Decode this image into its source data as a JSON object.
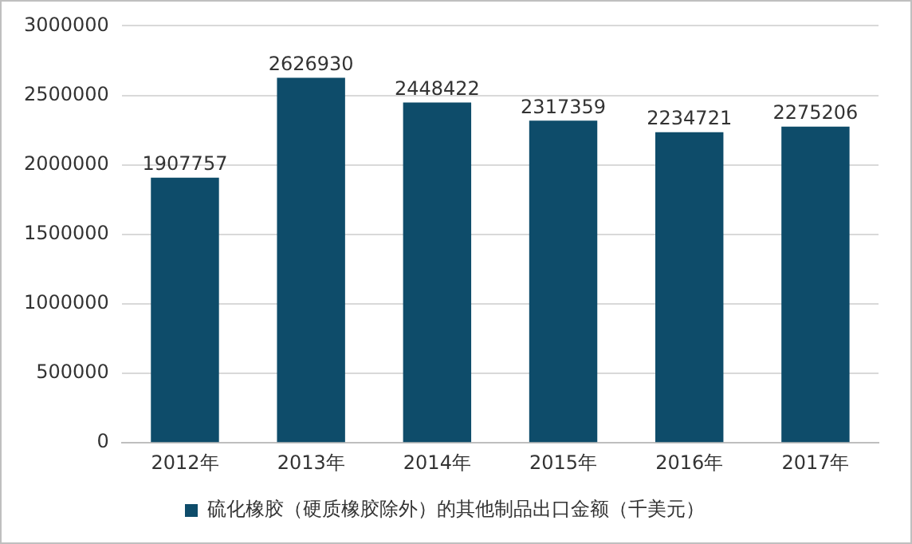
{
  "chart_data": {
    "type": "bar",
    "categories": [
      "2012年",
      "2013年",
      "2014年",
      "2015年",
      "2016年",
      "2017年"
    ],
    "series": [
      {
        "name": "硫化橡胶（硬质橡胶除外）的其他制品出口金额（千美元）",
        "color": "#0e4c6a",
        "values": [
          1907757,
          2626930,
          2448422,
          2317359,
          2234721,
          2275206
        ]
      }
    ],
    "ylim": [
      0,
      3000000
    ],
    "yticks": [
      0,
      500000,
      1000000,
      1500000,
      2000000,
      2500000,
      3000000
    ],
    "grid": "y",
    "legend": "bottom",
    "data_labels": true
  }
}
